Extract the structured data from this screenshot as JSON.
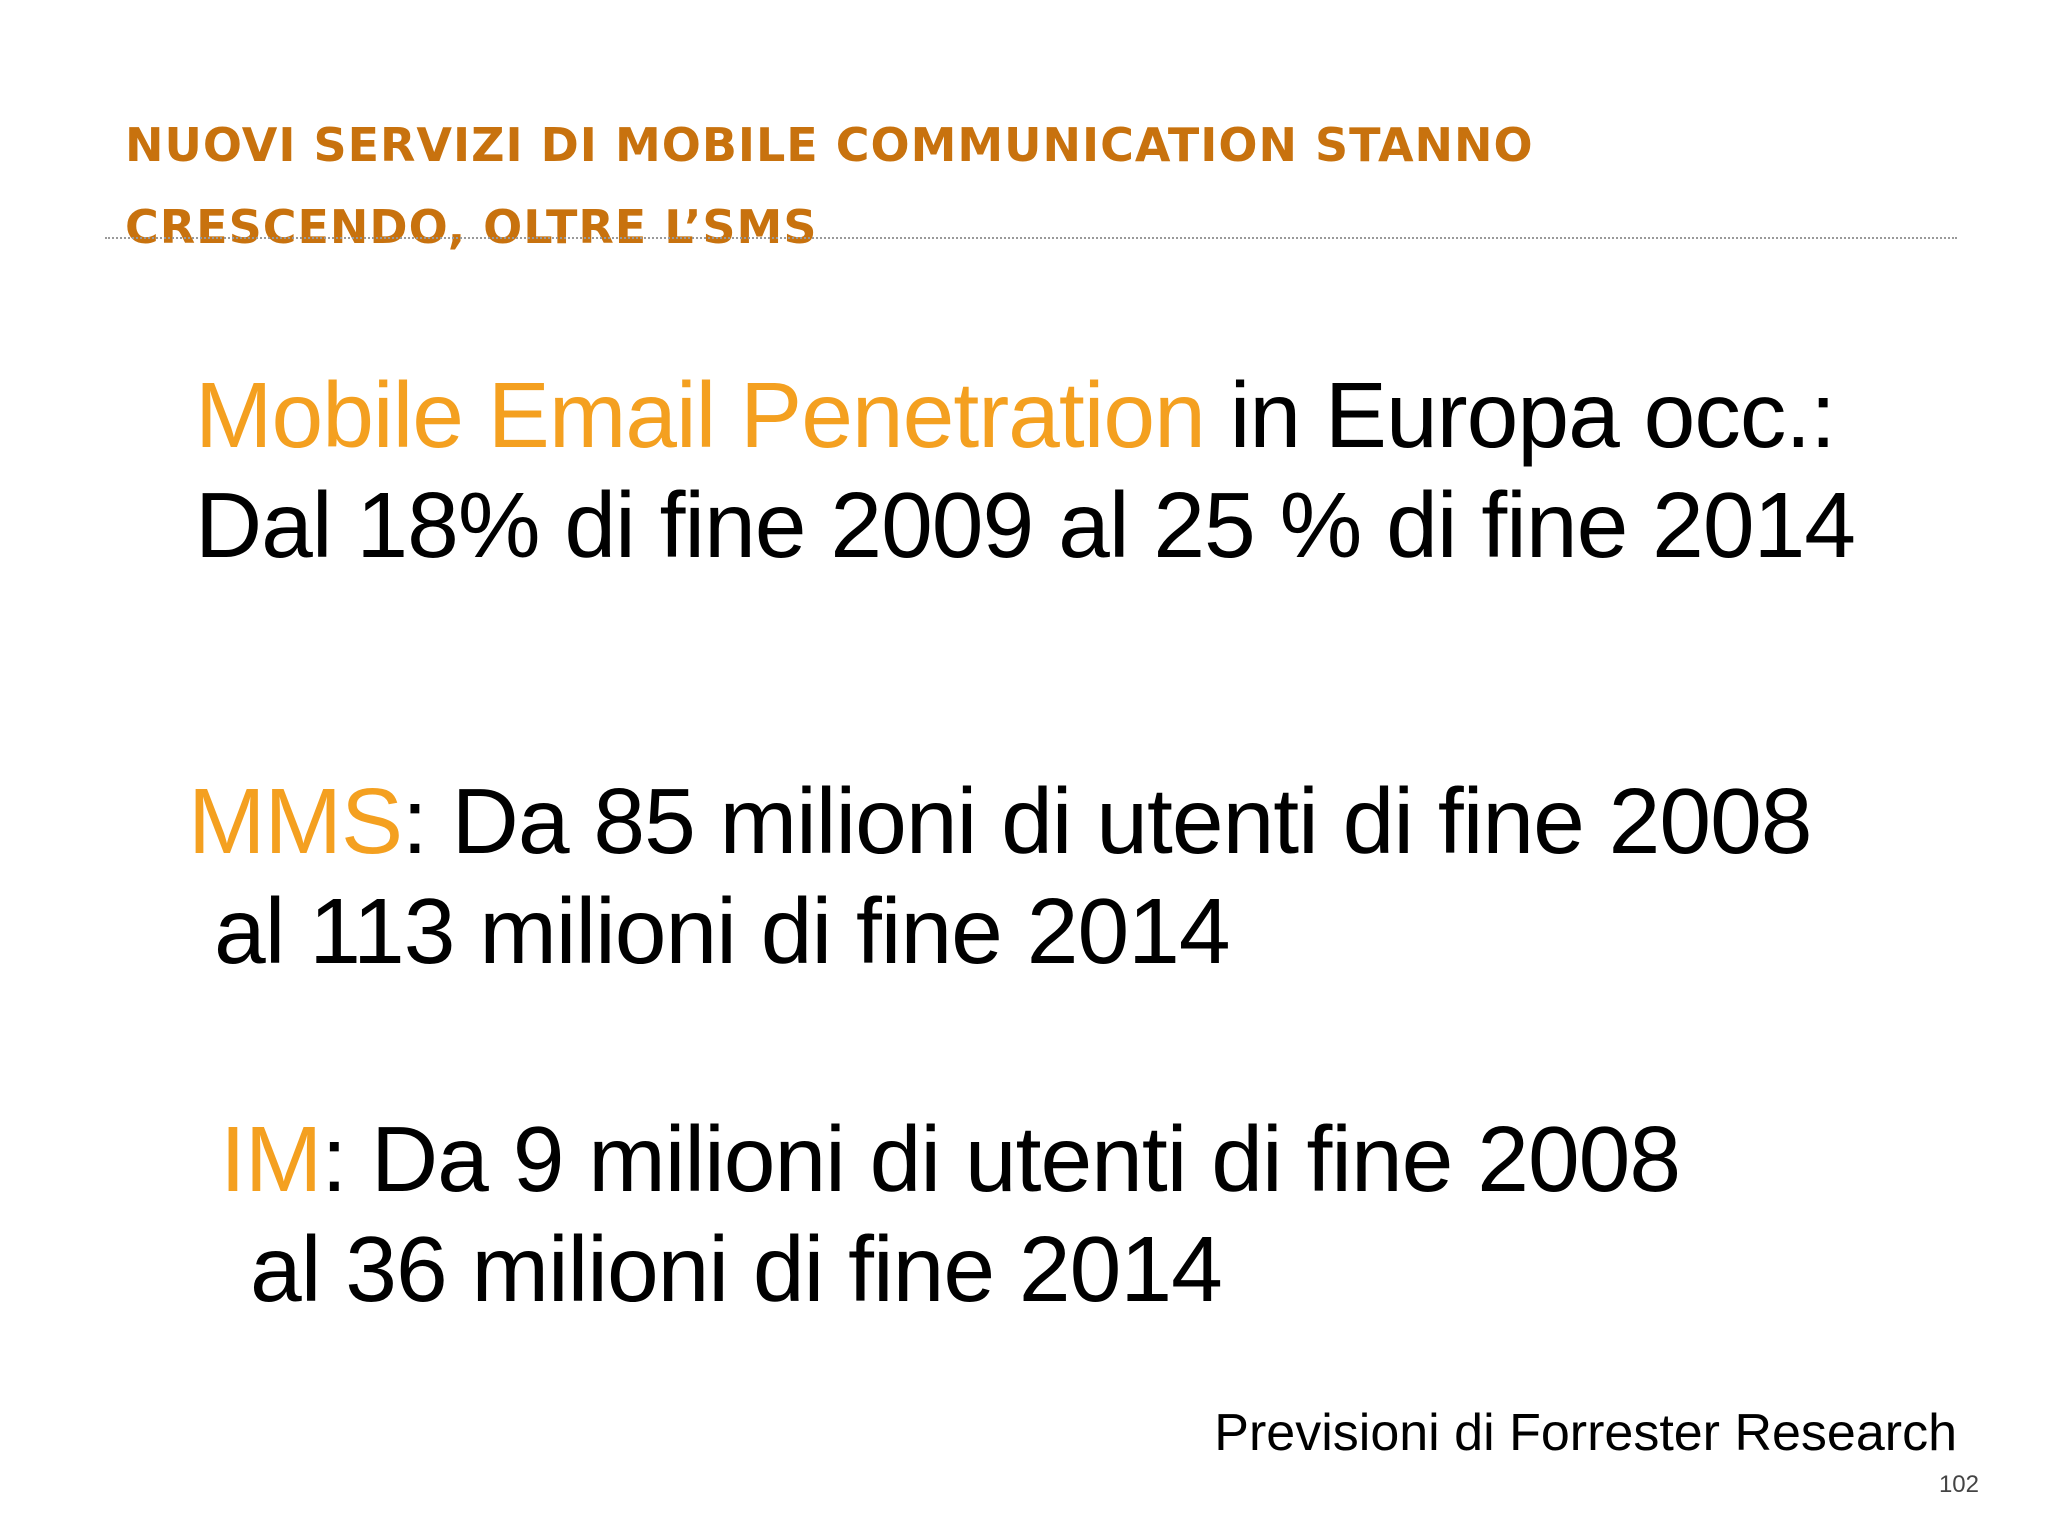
{
  "slide": {
    "title_lines": [
      "NUOVI SERVIZI DI MOBILE COMMUNICATION STANNO",
      "CRESCENDO, OLTRE L’SMS"
    ],
    "blocks": [
      {
        "highlight": "Mobile Email Penetration",
        "line1_rest": " in Europa occ.:",
        "line2": "Dal 18% di fine 2009 al 25 % di fine 2014"
      },
      {
        "highlight": "MMS",
        "line1_rest": ": Da 85 milioni di utenti di fine 2008",
        "line2": "al 113 milioni di fine 2014"
      },
      {
        "highlight": "IM",
        "line1_rest": ": Da 9 milioni di utenti di fine 2008",
        "line2": "al 36 milioni di fine 2014"
      }
    ],
    "source": "Previsioni di Forrester Research",
    "page_number": "102"
  },
  "colors": {
    "title": "#c8720e",
    "highlight": "#f4a020",
    "text": "#000000"
  }
}
